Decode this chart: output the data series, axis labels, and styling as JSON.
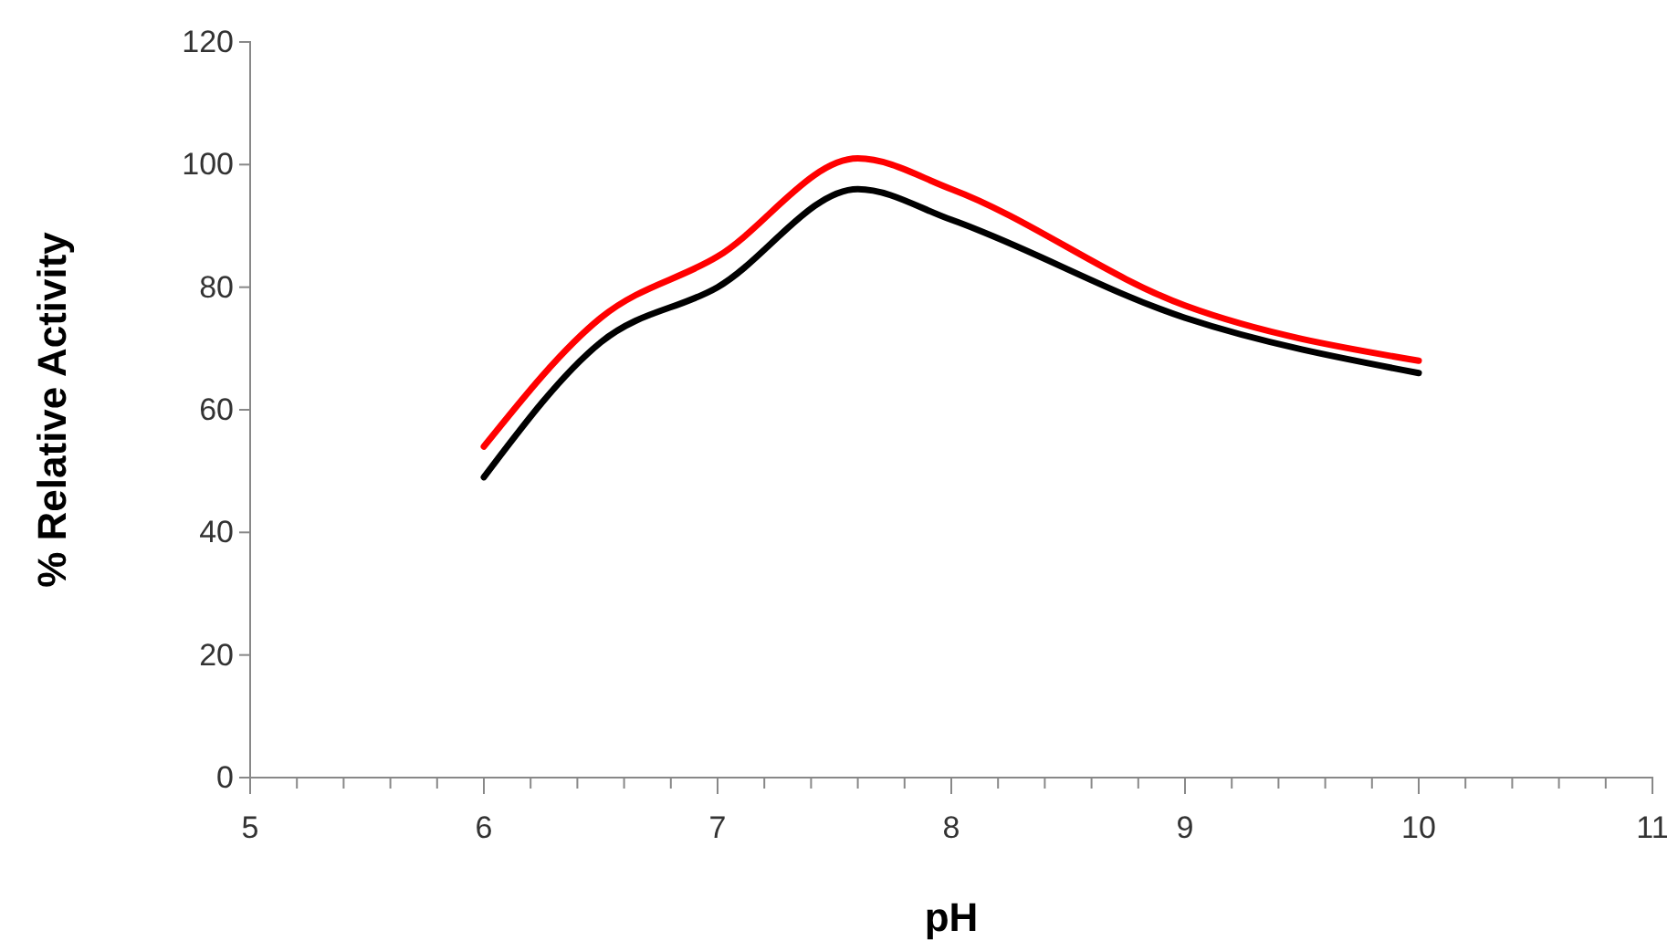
{
  "chart_data": {
    "type": "line",
    "xlabel": "pH",
    "ylabel": "% Relative Activity",
    "xlim": [
      5,
      11
    ],
    "xticks": [
      5,
      {
        "value": 5.2,
        "label": null
      },
      {
        "value": 5.4,
        "label": null
      },
      {
        "value": 5.6,
        "label": null
      },
      {
        "value": 5.8,
        "label": null
      },
      6,
      {
        "value": 6.2,
        "label": null
      },
      {
        "value": 6.4,
        "label": null
      },
      {
        "value": 6.6,
        "label": null
      },
      {
        "value": 6.8,
        "label": null
      },
      7,
      {
        "value": 7.2,
        "label": null
      },
      {
        "value": 7.4,
        "label": null
      },
      {
        "value": 7.6,
        "label": null
      },
      {
        "value": 7.8,
        "label": null
      },
      8,
      {
        "value": 8.2,
        "label": null
      },
      {
        "value": 8.4,
        "label": null
      },
      {
        "value": 8.6,
        "label": null
      },
      {
        "value": 8.8,
        "label": null
      },
      9,
      {
        "value": 9.2,
        "label": null
      },
      {
        "value": 9.4,
        "label": null
      },
      {
        "value": 9.6,
        "label": null
      },
      {
        "value": 9.8,
        "label": null
      },
      10,
      {
        "value": 10.2,
        "label": null
      },
      {
        "value": 10.4,
        "label": null
      },
      {
        "value": 10.6,
        "label": null
      },
      {
        "value": 10.8,
        "label": null
      },
      11
    ],
    "ylim": [
      0,
      120
    ],
    "yticks": [
      0,
      20,
      40,
      60,
      80,
      100,
      120
    ],
    "grid": false,
    "legend": false,
    "marker": "none",
    "line_style": "solid",
    "x": [
      6,
      6.5,
      7,
      7.6,
      8,
      9,
      10
    ],
    "series": [
      {
        "color": "#ff0000",
        "values": [
          54,
          75,
          85,
          101,
          96,
          77,
          68
        ]
      },
      {
        "color": "#000000",
        "values": [
          49,
          71,
          80,
          96,
          91,
          75,
          66
        ]
      }
    ]
  }
}
